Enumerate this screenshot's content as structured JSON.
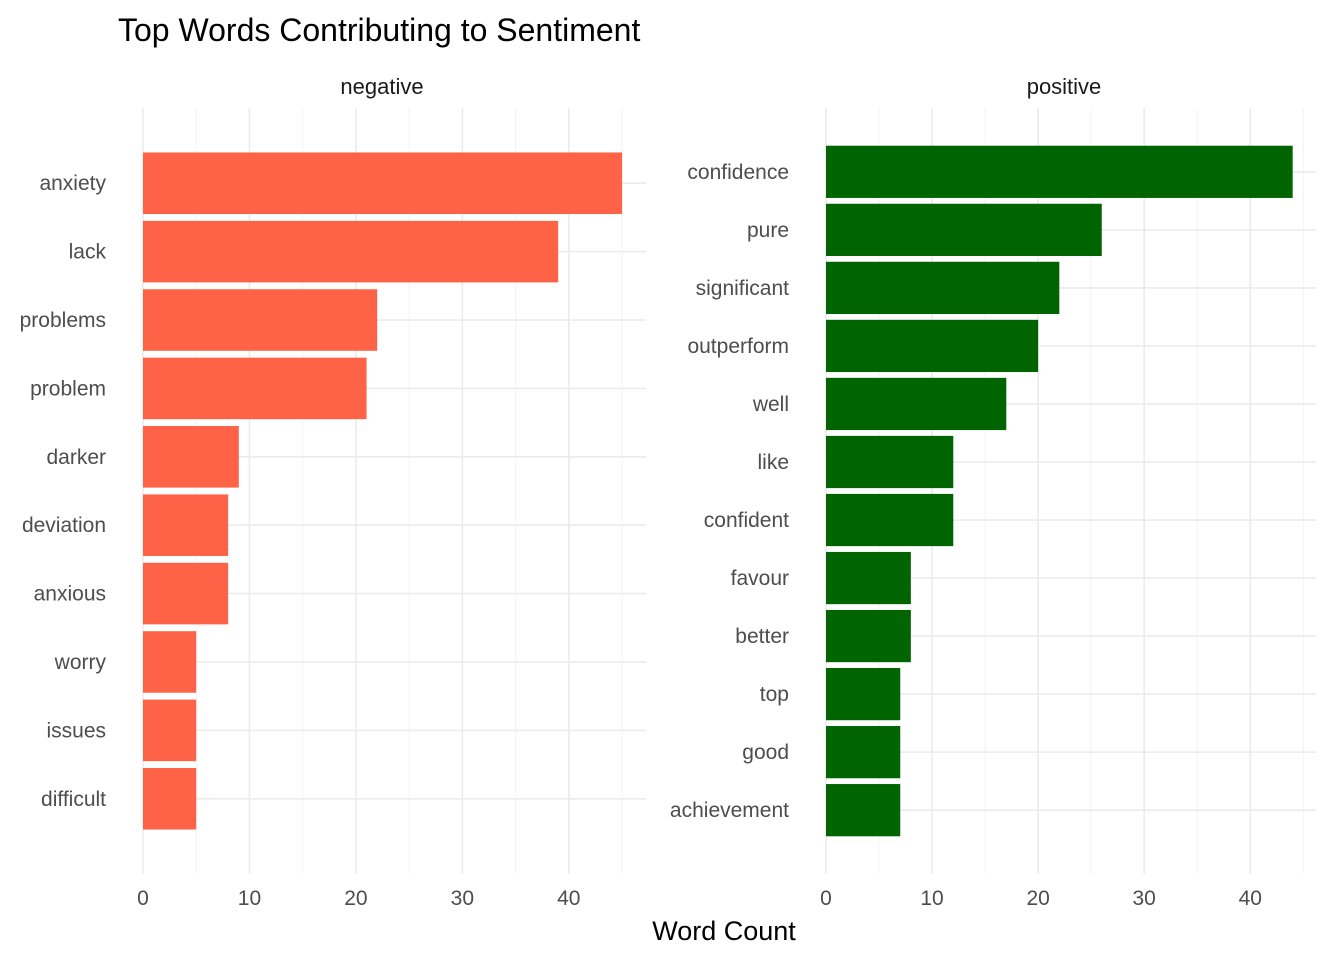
{
  "chart_data": {
    "type": "bar",
    "orientation": "horizontal",
    "title": "Top Words Contributing to Sentiment",
    "xlabel": "Word Count",
    "ylabel": "",
    "grid": true,
    "legend": "none",
    "panels": [
      {
        "strip": "negative",
        "color": "#ff6347",
        "xlim": [
          0,
          47.25
        ],
        "x_ticks": [
          0,
          10,
          20,
          30,
          40
        ],
        "categories": [
          "anxiety",
          "lack",
          "problems",
          "problem",
          "darker",
          "deviation",
          "anxious",
          "worry",
          "issues",
          "difficult"
        ],
        "values": [
          45,
          39,
          22,
          21,
          9,
          8,
          8,
          5,
          5,
          5
        ]
      },
      {
        "strip": "positive",
        "color": "#006400",
        "xlim": [
          0,
          46.2
        ],
        "x_ticks": [
          0,
          10,
          20,
          30,
          40
        ],
        "categories": [
          "confidence",
          "pure",
          "significant",
          "outperform",
          "well",
          "like",
          "confident",
          "favour",
          "better",
          "top",
          "good",
          "achievement"
        ],
        "values": [
          44,
          26,
          22,
          20,
          17,
          12,
          12,
          8,
          8,
          7,
          7,
          7
        ]
      }
    ]
  }
}
